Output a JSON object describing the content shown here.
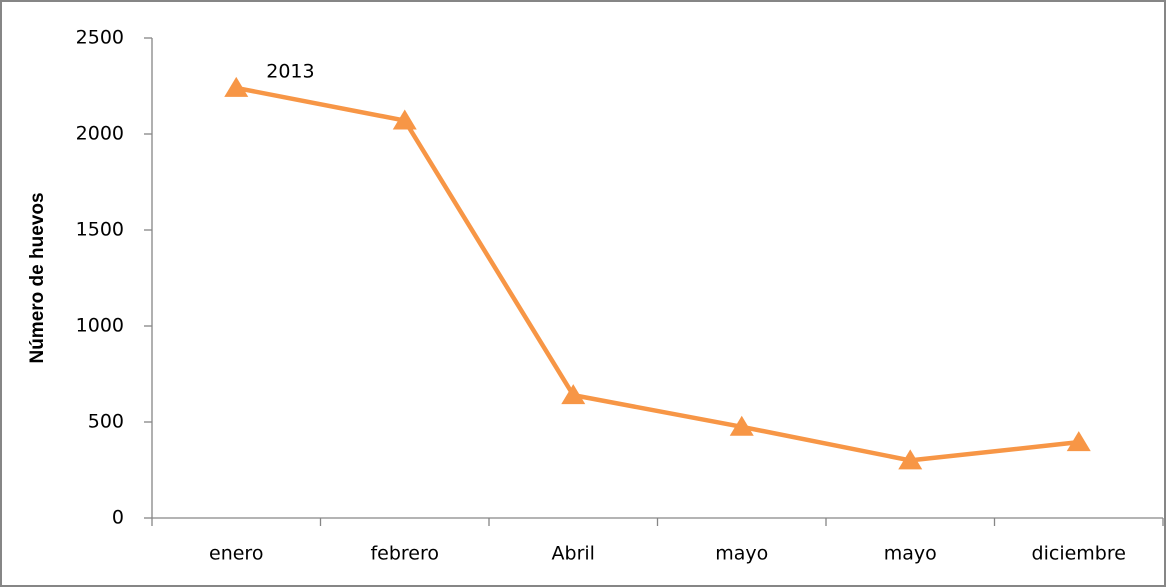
{
  "chart_data": {
    "type": "line",
    "y_label": "Número de huevos",
    "categories": [
      "enero",
      "febrero",
      "Abril",
      "mayo",
      "mayo",
      "diciembre"
    ],
    "series": [
      {
        "name": "2013",
        "color": "#f79646",
        "values": [
          2240,
          2070,
          640,
          475,
          300,
          395
        ]
      }
    ],
    "ylim": [
      0,
      2500
    ],
    "yticks": [
      0,
      500,
      1000,
      1500,
      2000,
      2500
    ],
    "grid": false,
    "marker": "triangle"
  }
}
